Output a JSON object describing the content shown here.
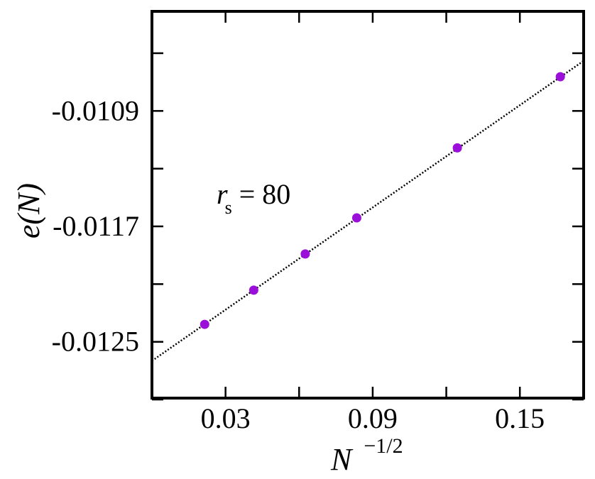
{
  "chart_data": {
    "type": "scatter",
    "xlabel": "N",
    "xlabel_sup": "−1/2",
    "ylabel": "e(N)",
    "xlim": [
      0.0,
      0.176
    ],
    "ylim": [
      -0.01289,
      -0.01021
    ],
    "xticks_major": [
      0.03,
      0.09,
      0.15
    ],
    "xtick_labels": [
      "0.03",
      "0.09",
      "0.15"
    ],
    "xticks_minor": [
      0.06,
      0.12
    ],
    "yticks_major": [
      -0.0109,
      -0.0117,
      -0.0125
    ],
    "ytick_labels": [
      "-0.0109",
      "-0.0117",
      "-0.0125"
    ],
    "yticks_minor": [
      -0.0105,
      -0.0113,
      -0.0121,
      -0.0129
    ],
    "series": [
      {
        "x": [
          0.0215,
          0.0415,
          0.0625,
          0.0835,
          0.1245,
          0.1665
        ],
        "y": [
          -0.012379,
          -0.012142,
          -0.011891,
          -0.011641,
          -0.011156,
          -0.010663
        ],
        "color": "#9a10d8"
      }
    ],
    "fit_line": {
      "x": [
        0.0,
        0.176
      ],
      "y": [
        -0.012632,
        -0.010553
      ],
      "style": "dotted",
      "color": "#000000"
    },
    "annotation": {
      "main": "r",
      "sub": "s",
      "rest": " = 80"
    },
    "grid": false
  }
}
